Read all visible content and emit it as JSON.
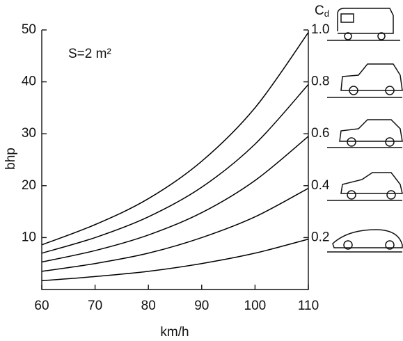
{
  "chart_data": {
    "type": "line",
    "annotation": "S=2 m²",
    "y_label": "bhp",
    "x_label": "km/h",
    "y2_label": {
      "main": "C",
      "sub": "d"
    },
    "x": [
      60,
      70,
      80,
      90,
      100,
      110
    ],
    "series": [
      {
        "color": "#000000",
        "values": [
          1.7,
          2.5,
          3.5,
          5,
          7,
          9.7
        ]
      },
      {
        "color": "#000000",
        "values": [
          3.5,
          5,
          7,
          10,
          14,
          19.5
        ]
      },
      {
        "color": "#000000",
        "values": [
          5.3,
          7.5,
          10.5,
          14.8,
          21,
          29.5
        ]
      },
      {
        "color": "#000000",
        "values": [
          7,
          10,
          14,
          19.7,
          28,
          39.5
        ]
      },
      {
        "color": "#000000",
        "values": [
          8.6,
          12.5,
          17.5,
          24.7,
          35,
          49.5
        ]
      }
    ],
    "xlim": [
      60,
      110
    ],
    "xticks": [
      60,
      70,
      80,
      90,
      100,
      110
    ],
    "ylim": [
      0,
      50
    ],
    "yticks": [
      10,
      20,
      30,
      40,
      50
    ],
    "y2lim": [
      0,
      1
    ],
    "y2ticks": [
      0.2,
      0.4,
      0.6,
      {
        "value": 1,
        "label": "1.0"
      },
      {
        "value": 0.8,
        "label": "0.8"
      }
    ],
    "grid": false
  }
}
